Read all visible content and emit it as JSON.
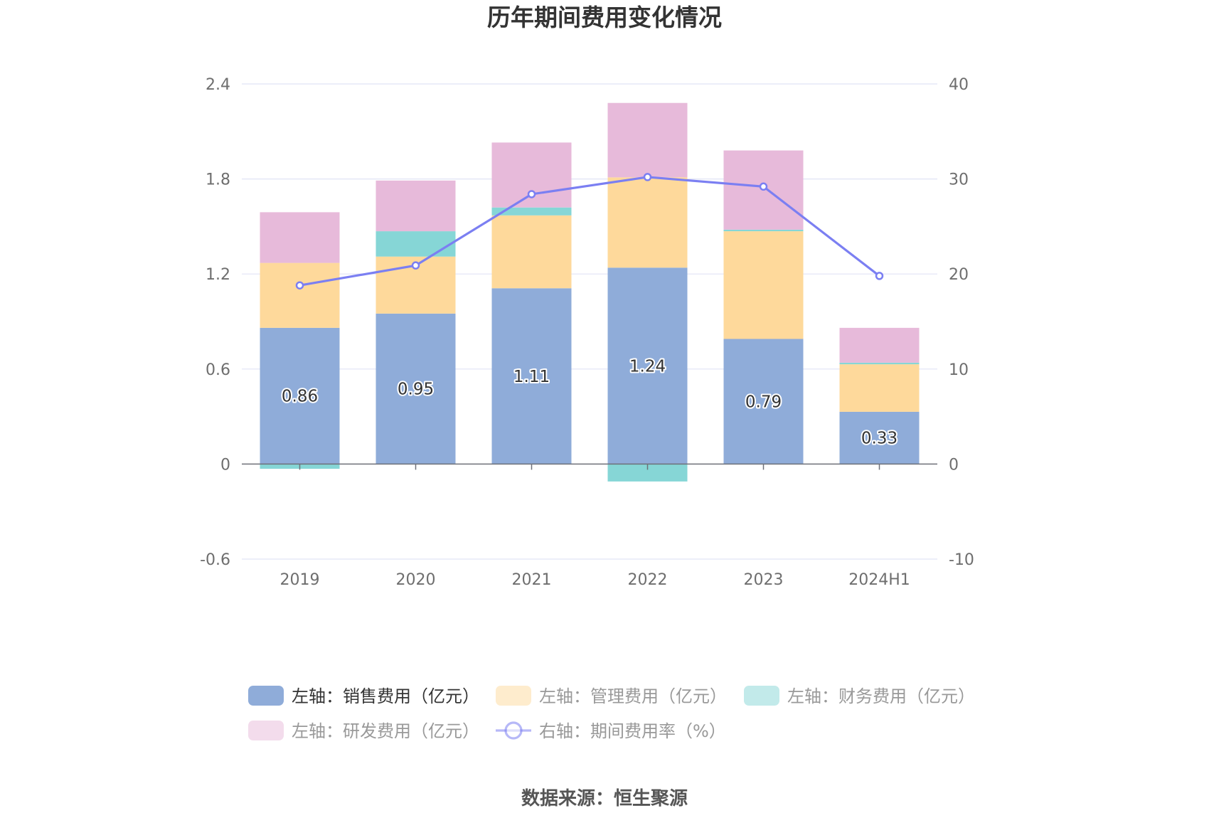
{
  "title": "历年期间费用变化情况",
  "source": "数据来源：恒生聚源",
  "chart_data": {
    "type": "bar",
    "stacked": true,
    "categories": [
      "2019",
      "2020",
      "2021",
      "2022",
      "2023",
      "2024H1"
    ],
    "y_left": {
      "min": -0.6,
      "max": 2.4,
      "ticks": [
        "2.4",
        "1.8",
        "1.2",
        "0.6",
        "0",
        "-0.6"
      ]
    },
    "y_right": {
      "min": -10,
      "max": 40,
      "ticks": [
        "40",
        "30",
        "20",
        "10",
        "0",
        "-10"
      ]
    },
    "grid": true,
    "legend_position": "bottom",
    "series": [
      {
        "name": "左轴：销售费用（亿元）",
        "type": "bar",
        "axis": "left",
        "color": "#8facd9",
        "values": [
          0.86,
          0.95,
          1.11,
          1.24,
          0.79,
          0.33
        ],
        "labels": [
          "0.86",
          "0.95",
          "1.11",
          "1.24",
          "0.79",
          "0.33"
        ]
      },
      {
        "name": "左轴：管理费用（亿元）",
        "type": "bar",
        "axis": "left",
        "color": "#fed99b",
        "values": [
          0.41,
          0.36,
          0.46,
          0.57,
          0.68,
          0.3
        ]
      },
      {
        "name": "左轴：财务费用（亿元）",
        "type": "bar",
        "axis": "left",
        "color": "#86d6d6",
        "values": [
          -0.03,
          0.16,
          0.05,
          -0.11,
          0.01,
          0.01
        ]
      },
      {
        "name": "左轴：研发费用（亿元）",
        "type": "bar",
        "axis": "left",
        "color": "#e7bada",
        "values": [
          0.32,
          0.32,
          0.41,
          0.47,
          0.5,
          0.22
        ]
      },
      {
        "name": "右轴：期间费用率（%）",
        "type": "line",
        "axis": "right",
        "color": "#7b7ff2",
        "values": [
          18.8,
          20.9,
          28.4,
          30.2,
          29.2,
          19.8
        ]
      }
    ]
  }
}
